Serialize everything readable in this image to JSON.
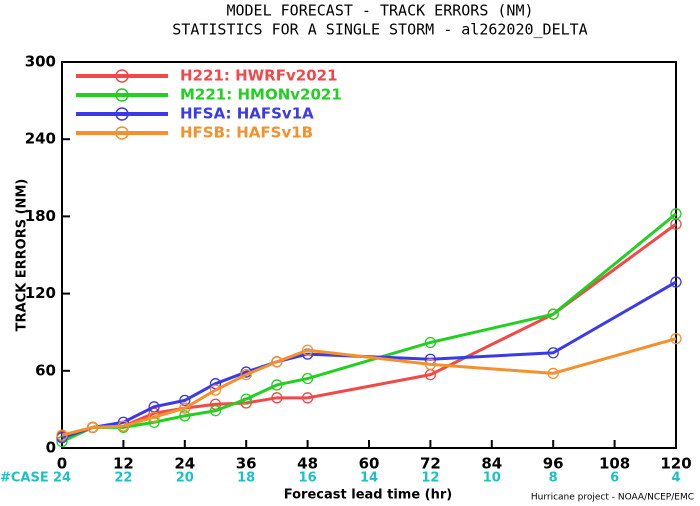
{
  "chart_data": {
    "type": "line",
    "title": "MODEL FORECAST - TRACK ERRORS (NM)",
    "subtitle": "STATISTICS FOR A SINGLE STORM - al262020_DELTA",
    "x_label": "Forecast lead time (hr)",
    "y_label": "TRACK ERRORS (NM)",
    "footer": "Hurricane project - NOAA/NCEP/EMC",
    "case_label": "#CASE",
    "cases": [
      24,
      22,
      20,
      18,
      16,
      14,
      12,
      10,
      8,
      6,
      4
    ],
    "x": [
      0,
      6,
      12,
      18,
      24,
      30,
      36,
      42,
      48,
      72,
      96,
      120
    ],
    "xlim": [
      0,
      120
    ],
    "xticks": [
      0,
      12,
      24,
      36,
      48,
      60,
      72,
      84,
      96,
      108,
      120
    ],
    "ylim": [
      0,
      300
    ],
    "yticks": [
      0,
      60,
      120,
      180,
      240,
      300
    ],
    "legend": "upper left",
    "series": [
      {
        "name": "H221: HWRFv2021",
        "color": "#f24848",
        "values": [
          9,
          16,
          17,
          27,
          31,
          34,
          35,
          39,
          39,
          57,
          104,
          174
        ]
      },
      {
        "name": "M221: HMONv2021",
        "color": "#22d022",
        "values": [
          5,
          16,
          16,
          20,
          25,
          29,
          38,
          49,
          54,
          82,
          104,
          182
        ]
      },
      {
        "name": "HFSA: HAFSv1A",
        "color": "#3a3ae8",
        "values": [
          8,
          16,
          20,
          32,
          37,
          50,
          59,
          67,
          73,
          69,
          74,
          129
        ]
      },
      {
        "name": "HFSB: HAFSv1B",
        "color": "#f5902e",
        "values": [
          10,
          16,
          17,
          24,
          31,
          45,
          57,
          67,
          76,
          65,
          58,
          85
        ]
      }
    ]
  }
}
